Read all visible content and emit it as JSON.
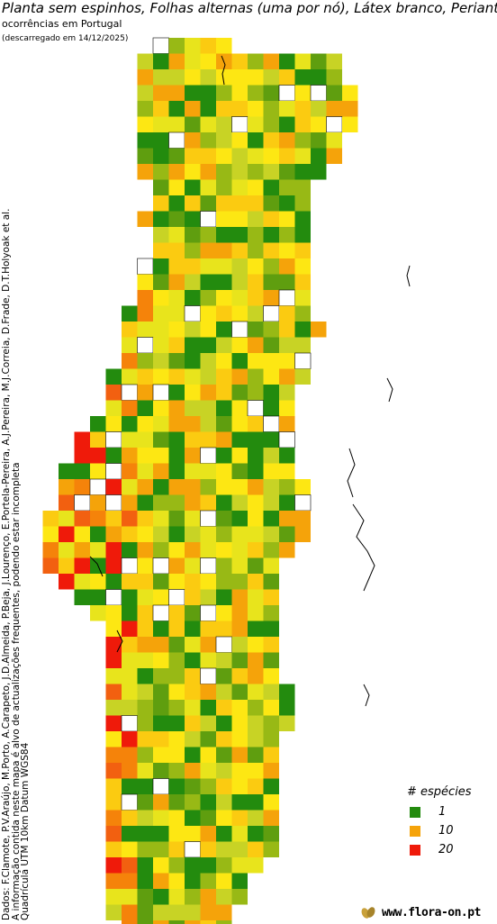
{
  "title": "Planta sem espinhos, Folhas alternas (uma por nó), Látex branco, Perianto",
  "subtitle": "ocorrências em Portugal",
  "download_note": "(descarregado em 14/12/2025)",
  "credits": {
    "line1": "Dados: F.Clamote, P.V.Araújo, M.Porto, A.Carapeto, J.D.Almeida, P.Beja, J.Lourenço, E.Portela-Pereira, A.J.Pereira, M.J.Correia, D.Frade, D.T.Holyoak et al.",
    "line2": "A informação contida neste mapa é alvo de actualizações frequentes, podendo estar incompleta",
    "line3": "Quadrícula UTM 10km Datum WGS84"
  },
  "legend": {
    "title": "# espécies",
    "items": [
      {
        "label": "1",
        "color": "#238b0e"
      },
      {
        "label": "10",
        "color": "#f5a30a"
      },
      {
        "label": "20",
        "color": "#ef1a0a"
      }
    ]
  },
  "footer": {
    "site": "www.flora-on.pt"
  },
  "colors": {
    "scale": [
      "#238b0e",
      "#5f9e0f",
      "#98b915",
      "#c8d325",
      "#e8e41c",
      "#fde713",
      "#fbcb11",
      "#f5a30a",
      "#f5830a",
      "#f26010",
      "#ef1a0a"
    ],
    "empty_border": "#000000",
    "coast": "#000000"
  }
}
